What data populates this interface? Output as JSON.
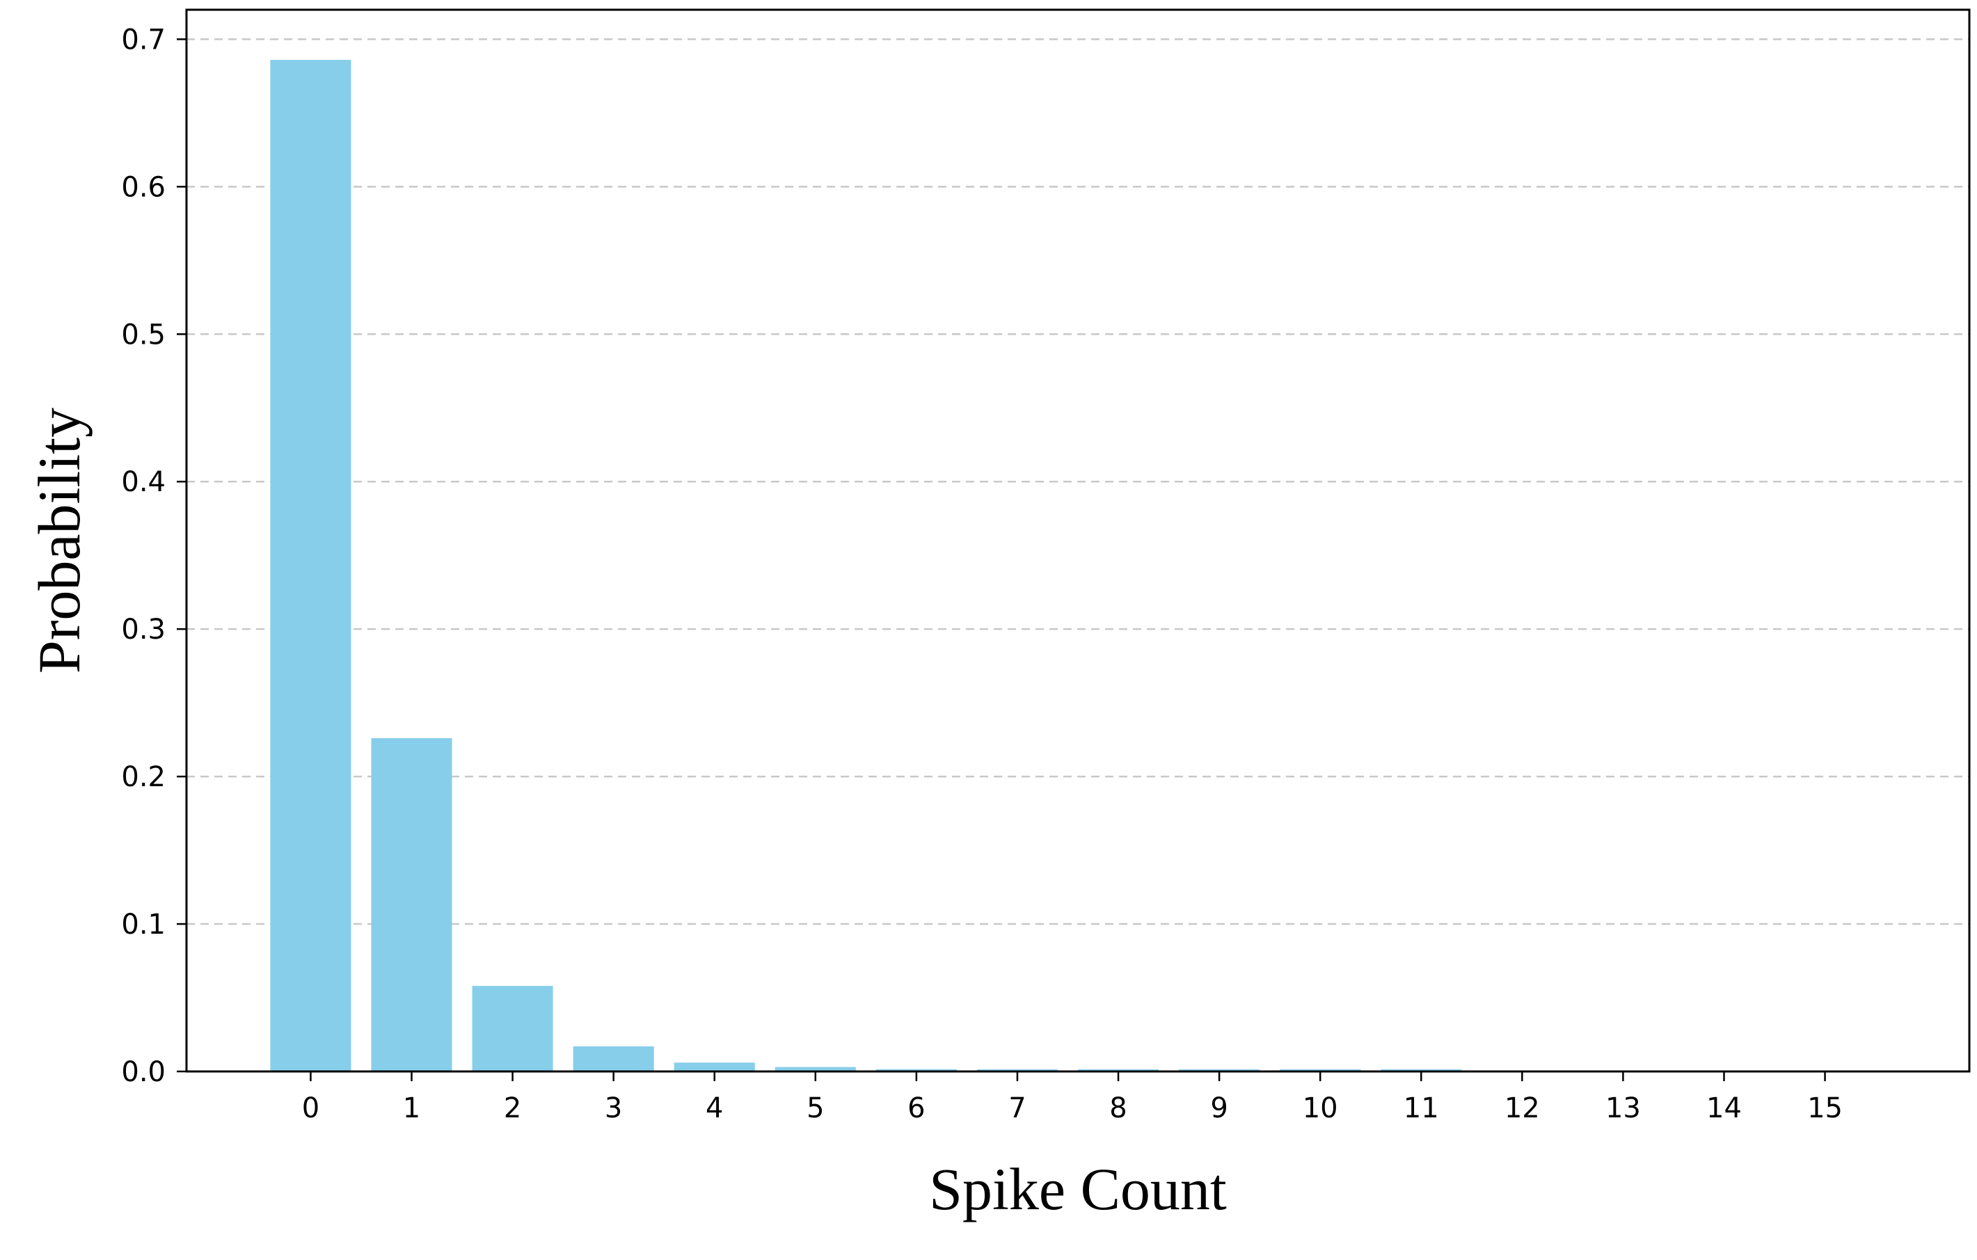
{
  "chart_data": {
    "type": "bar",
    "title": "",
    "xlabel": "Spike Count",
    "ylabel": "Probability",
    "categories": [
      "0",
      "1",
      "2",
      "3",
      "4",
      "5",
      "6",
      "7",
      "8",
      "9",
      "10",
      "11",
      "12",
      "13",
      "14",
      "15"
    ],
    "values": [
      0.686,
      0.226,
      0.058,
      0.017,
      0.006,
      0.003,
      0.0015,
      0.001,
      0.0005,
      0.0002,
      0.0001,
      0.0001,
      0.0,
      0.0,
      0.0,
      0.0
    ],
    "ylim": [
      0,
      0.72
    ],
    "yticks": [
      "0.0",
      "0.1",
      "0.2",
      "0.3",
      "0.4",
      "0.5",
      "0.6",
      "0.7"
    ],
    "grid": "y-dashed",
    "bar_color": "#87ceeb",
    "grid_color": "#c8c8c8"
  }
}
